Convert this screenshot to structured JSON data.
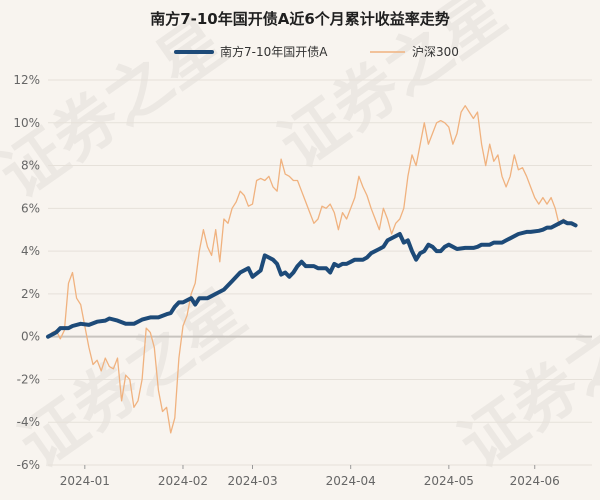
{
  "chart_data": {
    "type": "line",
    "title": "南方7-10年国开债A近6个月累计收益率走势",
    "xlabel": "",
    "ylabel": "",
    "ylim": [
      -6,
      12
    ],
    "y_ticks": [
      -6,
      -4,
      -2,
      0,
      2,
      4,
      6,
      8,
      10,
      12
    ],
    "y_tick_labels": [
      "-6%",
      "-4%",
      "-2%",
      "0%",
      "2%",
      "4%",
      "6%",
      "8%",
      "10%",
      "12%"
    ],
    "x_range": [
      0,
      133
    ],
    "x_ticks": [
      {
        "x": 9,
        "label": "2024-01"
      },
      {
        "x": 33,
        "label": "2024-02"
      },
      {
        "x": 50,
        "label": "2024-03"
      },
      {
        "x": 74,
        "label": "2024-04"
      },
      {
        "x": 98,
        "label": "2024-05"
      },
      {
        "x": 119,
        "label": "2024-06"
      }
    ],
    "watermark": "证券之星",
    "series": [
      {
        "name": "南方7-10年国开债A",
        "color": "#1d4a78",
        "style": "bold",
        "points": [
          [
            0,
            0
          ],
          [
            2,
            0.2
          ],
          [
            3,
            0.4
          ],
          [
            5,
            0.4
          ],
          [
            6,
            0.5
          ],
          [
            8,
            0.6
          ],
          [
            10,
            0.55
          ],
          [
            12,
            0.7
          ],
          [
            14,
            0.75
          ],
          [
            15,
            0.85
          ],
          [
            17,
            0.75
          ],
          [
            19,
            0.6
          ],
          [
            21,
            0.6
          ],
          [
            23,
            0.8
          ],
          [
            25,
            0.9
          ],
          [
            27,
            0.9
          ],
          [
            29,
            1.05
          ],
          [
            30,
            1.1
          ],
          [
            31,
            1.4
          ],
          [
            32,
            1.6
          ],
          [
            33,
            1.6
          ],
          [
            35,
            1.8
          ],
          [
            36,
            1.5
          ],
          [
            37,
            1.8
          ],
          [
            39,
            1.8
          ],
          [
            41,
            2.0
          ],
          [
            43,
            2.2
          ],
          [
            45,
            2.6
          ],
          [
            47,
            3.0
          ],
          [
            49,
            3.2
          ],
          [
            50,
            2.8
          ],
          [
            52,
            3.1
          ],
          [
            53,
            3.8
          ],
          [
            55,
            3.6
          ],
          [
            56,
            3.4
          ],
          [
            57,
            2.9
          ],
          [
            58,
            3.0
          ],
          [
            59,
            2.8
          ],
          [
            60,
            3.0
          ],
          [
            61,
            3.3
          ],
          [
            62,
            3.5
          ],
          [
            63,
            3.3
          ],
          [
            65,
            3.3
          ],
          [
            66,
            3.2
          ],
          [
            68,
            3.2
          ],
          [
            69,
            3.0
          ],
          [
            70,
            3.4
          ],
          [
            71,
            3.3
          ],
          [
            72,
            3.4
          ],
          [
            73,
            3.4
          ],
          [
            74,
            3.5
          ],
          [
            75,
            3.6
          ],
          [
            77,
            3.6
          ],
          [
            78,
            3.7
          ],
          [
            79,
            3.9
          ],
          [
            81,
            4.1
          ],
          [
            82,
            4.2
          ],
          [
            83,
            4.5
          ],
          [
            85,
            4.7
          ],
          [
            86,
            4.8
          ],
          [
            87,
            4.4
          ],
          [
            88,
            4.5
          ],
          [
            89,
            4.0
          ],
          [
            90,
            3.6
          ],
          [
            91,
            3.9
          ],
          [
            92,
            4.0
          ],
          [
            93,
            4.3
          ],
          [
            94,
            4.2
          ],
          [
            95,
            4.0
          ],
          [
            96,
            4.0
          ],
          [
            97,
            4.2
          ],
          [
            98,
            4.3
          ],
          [
            99,
            4.2
          ],
          [
            100,
            4.1
          ],
          [
            102,
            4.15
          ],
          [
            104,
            4.15
          ],
          [
            105,
            4.2
          ],
          [
            106,
            4.3
          ],
          [
            108,
            4.3
          ],
          [
            109,
            4.4
          ],
          [
            111,
            4.4
          ],
          [
            112,
            4.5
          ],
          [
            113,
            4.6
          ],
          [
            115,
            4.8
          ],
          [
            117,
            4.9
          ],
          [
            118,
            4.9
          ],
          [
            120,
            4.95
          ],
          [
            121,
            5.0
          ],
          [
            122,
            5.1
          ],
          [
            123,
            5.1
          ],
          [
            125,
            5.3
          ],
          [
            126,
            5.4
          ],
          [
            127,
            5.3
          ],
          [
            128,
            5.3
          ],
          [
            129,
            5.2
          ]
        ]
      },
      {
        "name": "沪深300",
        "color": "#f0b27f",
        "style": "thin",
        "points": [
          [
            0,
            0
          ],
          [
            1,
            0.2
          ],
          [
            2,
            0.3
          ],
          [
            3,
            -0.1
          ],
          [
            4,
            0.3
          ],
          [
            5,
            2.5
          ],
          [
            6,
            3.0
          ],
          [
            7,
            1.8
          ],
          [
            8,
            1.5
          ],
          [
            9,
            0.5
          ],
          [
            10,
            -0.5
          ],
          [
            11,
            -1.3
          ],
          [
            12,
            -1.1
          ],
          [
            13,
            -1.6
          ],
          [
            14,
            -1.0
          ],
          [
            15,
            -1.4
          ],
          [
            16,
            -1.5
          ],
          [
            17,
            -1.0
          ],
          [
            18,
            -3.0
          ],
          [
            19,
            -1.8
          ],
          [
            20,
            -2.0
          ],
          [
            21,
            -3.3
          ],
          [
            22,
            -3.0
          ],
          [
            23,
            -2.0
          ],
          [
            24,
            0.4
          ],
          [
            25,
            0.2
          ],
          [
            26,
            -0.5
          ],
          [
            27,
            -2.5
          ],
          [
            28,
            -3.5
          ],
          [
            29,
            -3.3
          ],
          [
            30,
            -4.5
          ],
          [
            31,
            -3.8
          ],
          [
            32,
            -1.0
          ],
          [
            33,
            0.5
          ],
          [
            34,
            1.0
          ],
          [
            35,
            2.0
          ],
          [
            36,
            2.5
          ],
          [
            37,
            4.0
          ],
          [
            38,
            5.0
          ],
          [
            39,
            4.2
          ],
          [
            40,
            3.8
          ],
          [
            41,
            5.0
          ],
          [
            42,
            3.5
          ],
          [
            43,
            5.5
          ],
          [
            44,
            5.3
          ],
          [
            45,
            6.0
          ],
          [
            46,
            6.3
          ],
          [
            47,
            6.8
          ],
          [
            48,
            6.6
          ],
          [
            49,
            6.1
          ],
          [
            50,
            6.2
          ],
          [
            51,
            7.3
          ],
          [
            52,
            7.4
          ],
          [
            53,
            7.3
          ],
          [
            54,
            7.5
          ],
          [
            55,
            7.0
          ],
          [
            56,
            6.8
          ],
          [
            57,
            8.3
          ],
          [
            58,
            7.6
          ],
          [
            59,
            7.5
          ],
          [
            60,
            7.3
          ],
          [
            61,
            7.3
          ],
          [
            62,
            6.8
          ],
          [
            63,
            6.3
          ],
          [
            64,
            5.8
          ],
          [
            65,
            5.3
          ],
          [
            66,
            5.5
          ],
          [
            67,
            6.1
          ],
          [
            68,
            6.0
          ],
          [
            69,
            6.2
          ],
          [
            70,
            5.8
          ],
          [
            71,
            5.0
          ],
          [
            72,
            5.8
          ],
          [
            73,
            5.5
          ],
          [
            74,
            6.0
          ],
          [
            75,
            6.5
          ],
          [
            76,
            7.5
          ],
          [
            77,
            7.0
          ],
          [
            78,
            6.6
          ],
          [
            79,
            6.0
          ],
          [
            80,
            5.5
          ],
          [
            81,
            5.0
          ],
          [
            82,
            6.0
          ],
          [
            83,
            5.5
          ],
          [
            84,
            4.8
          ],
          [
            85,
            5.3
          ],
          [
            86,
            5.5
          ],
          [
            87,
            6.0
          ],
          [
            88,
            7.5
          ],
          [
            89,
            8.5
          ],
          [
            90,
            8.0
          ],
          [
            91,
            9.0
          ],
          [
            92,
            10.0
          ],
          [
            93,
            9.0
          ],
          [
            94,
            9.5
          ],
          [
            95,
            10.0
          ],
          [
            96,
            10.1
          ],
          [
            97,
            10.0
          ],
          [
            98,
            9.8
          ],
          [
            99,
            9.0
          ],
          [
            100,
            9.5
          ],
          [
            101,
            10.5
          ],
          [
            102,
            10.8
          ],
          [
            103,
            10.5
          ],
          [
            104,
            10.2
          ],
          [
            105,
            10.5
          ],
          [
            106,
            9.0
          ],
          [
            107,
            8.0
          ],
          [
            108,
            9.0
          ],
          [
            109,
            8.2
          ],
          [
            110,
            8.5
          ],
          [
            111,
            7.5
          ],
          [
            112,
            7.0
          ],
          [
            113,
            7.5
          ],
          [
            114,
            8.5
          ],
          [
            115,
            7.8
          ],
          [
            116,
            7.9
          ],
          [
            117,
            7.5
          ],
          [
            118,
            7.0
          ],
          [
            119,
            6.5
          ],
          [
            120,
            6.2
          ],
          [
            121,
            6.5
          ],
          [
            122,
            6.2
          ],
          [
            123,
            6.5
          ],
          [
            124,
            6.0
          ],
          [
            125,
            5.2
          ],
          [
            126,
            5.5
          ],
          [
            127,
            5.3
          ]
        ]
      }
    ]
  }
}
